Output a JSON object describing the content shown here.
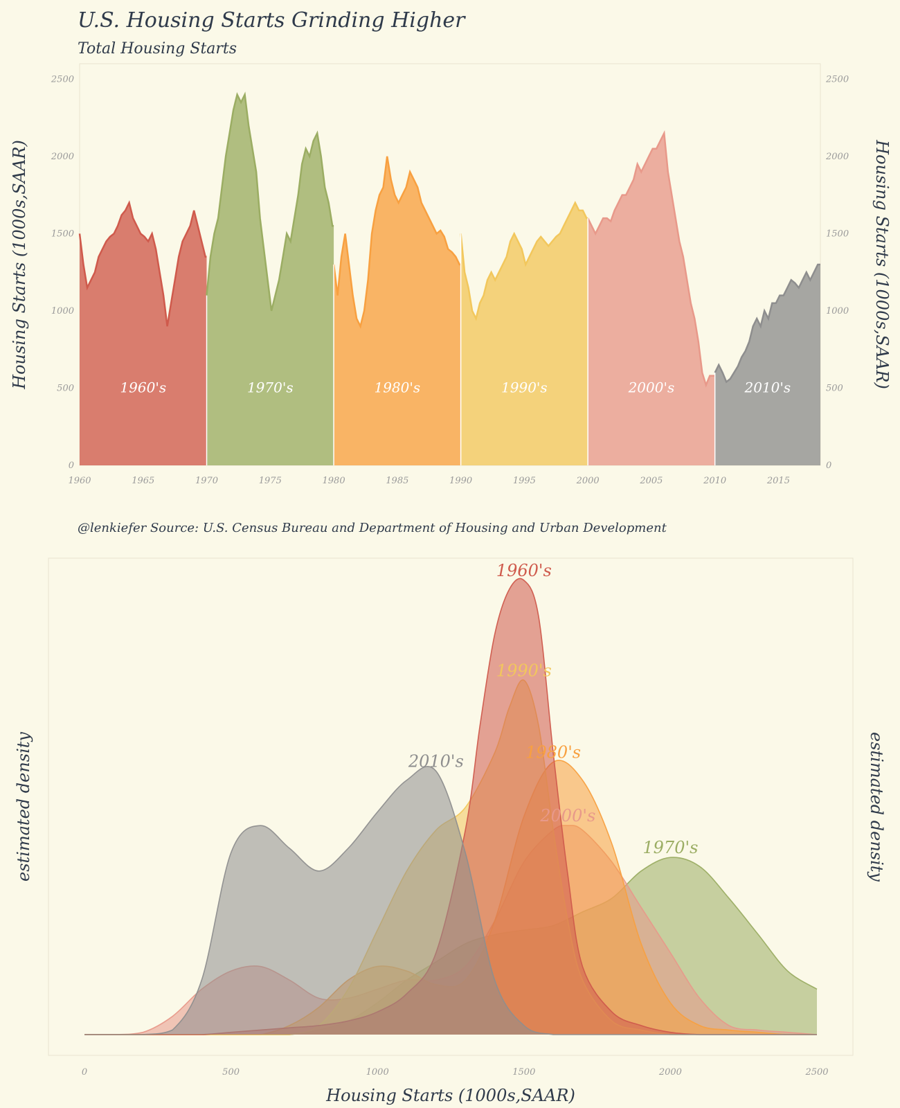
{
  "title": "U.S. Housing Starts Grinding Higher",
  "subtitle": "Total Housing Starts",
  "caption": "@lenkiefer  Source: U.S. Census Bureau and Department of Housing and Urban Development",
  "colors": {
    "1960's": "#cf5a4c",
    "1970's": "#9bad63",
    "1980's": "#f8a040",
    "1990's": "#f2c75c",
    "2000's": "#e8998a",
    "2010's": "#8e8e8e"
  },
  "chart_data": [
    {
      "type": "area",
      "title": "U.S. Housing Starts Grinding Higher",
      "subtitle": "Total Housing Starts",
      "ylabel": "Housing Starts (1000s,SAAR)",
      "ylabel_right": "Housing Starts (1000s,SAAR)",
      "xlim": [
        1960,
        2018.3
      ],
      "ylim": [
        0,
        2600
      ],
      "x_ticks": [
        "1960",
        "1965",
        "1970",
        "1975",
        "1980",
        "1985",
        "1990",
        "1995",
        "2000",
        "2005",
        "2010",
        "2015"
      ],
      "y_ticks": [
        "0",
        "500",
        "1000",
        "1500",
        "2000",
        "2500"
      ],
      "decade_labels": [
        "1960's",
        "1970's",
        "1980's",
        "1990's",
        "2000's",
        "2010's"
      ],
      "series": [
        {
          "name": "1960's",
          "x": [
            1960.0,
            1960.3,
            1960.6,
            1960.9,
            1961.2,
            1961.5,
            1961.8,
            1962.1,
            1962.4,
            1962.7,
            1963.0,
            1963.3,
            1963.6,
            1963.9,
            1964.2,
            1964.5,
            1964.8,
            1965.1,
            1965.4,
            1965.7,
            1966.0,
            1966.3,
            1966.6,
            1966.9,
            1967.2,
            1967.5,
            1967.8,
            1968.1,
            1968.4,
            1968.7,
            1969.0,
            1969.3,
            1969.6,
            1969.9
          ],
          "y": [
            1500,
            1300,
            1150,
            1200,
            1250,
            1350,
            1400,
            1450,
            1480,
            1500,
            1550,
            1620,
            1650,
            1700,
            1600,
            1550,
            1500,
            1480,
            1450,
            1500,
            1400,
            1250,
            1100,
            900,
            1050,
            1200,
            1350,
            1450,
            1500,
            1550,
            1650,
            1550,
            1450,
            1350
          ]
        },
        {
          "name": "1970's",
          "x": [
            1970.0,
            1970.3,
            1970.6,
            1970.9,
            1971.2,
            1971.5,
            1971.8,
            1972.1,
            1972.4,
            1972.7,
            1973.0,
            1973.3,
            1973.6,
            1973.9,
            1974.2,
            1974.5,
            1974.8,
            1975.1,
            1975.4,
            1975.7,
            1976.0,
            1976.3,
            1976.6,
            1976.9,
            1977.2,
            1977.5,
            1977.8,
            1978.1,
            1978.4,
            1978.7,
            1979.0,
            1979.3,
            1979.6,
            1979.9
          ],
          "y": [
            1100,
            1350,
            1500,
            1600,
            1800,
            2000,
            2150,
            2300,
            2400,
            2350,
            2400,
            2200,
            2050,
            1900,
            1600,
            1400,
            1200,
            1000,
            1100,
            1200,
            1350,
            1500,
            1450,
            1600,
            1750,
            1950,
            2050,
            2000,
            2100,
            2150,
            2000,
            1800,
            1700,
            1550
          ]
        },
        {
          "name": "1980's",
          "x": [
            1980.0,
            1980.3,
            1980.6,
            1980.9,
            1981.2,
            1981.5,
            1981.8,
            1982.1,
            1982.4,
            1982.7,
            1983.0,
            1983.3,
            1983.6,
            1983.9,
            1984.2,
            1984.5,
            1984.8,
            1985.1,
            1985.4,
            1985.7,
            1986.0,
            1986.3,
            1986.6,
            1986.9,
            1987.2,
            1987.5,
            1987.8,
            1988.1,
            1988.4,
            1988.7,
            1989.0,
            1989.3,
            1989.6,
            1989.9
          ],
          "y": [
            1300,
            1100,
            1350,
            1500,
            1300,
            1100,
            950,
            900,
            1000,
            1200,
            1500,
            1650,
            1750,
            1800,
            2000,
            1850,
            1750,
            1700,
            1750,
            1800,
            1900,
            1850,
            1800,
            1700,
            1650,
            1600,
            1550,
            1500,
            1520,
            1480,
            1400,
            1380,
            1350,
            1300
          ]
        },
        {
          "name": "1990's",
          "x": [
            1990.0,
            1990.3,
            1990.6,
            1990.9,
            1991.2,
            1991.5,
            1991.8,
            1992.1,
            1992.4,
            1992.7,
            1993.0,
            1993.3,
            1993.6,
            1993.9,
            1994.2,
            1994.5,
            1994.8,
            1995.1,
            1995.4,
            1995.7,
            1996.0,
            1996.3,
            1996.6,
            1996.9,
            1997.2,
            1997.5,
            1997.8,
            1998.1,
            1998.4,
            1998.7,
            1999.0,
            1999.3,
            1999.6,
            1999.9
          ],
          "y": [
            1500,
            1250,
            1150,
            1000,
            950,
            1050,
            1100,
            1200,
            1250,
            1200,
            1250,
            1300,
            1350,
            1450,
            1500,
            1450,
            1400,
            1300,
            1350,
            1400,
            1450,
            1480,
            1450,
            1420,
            1450,
            1480,
            1500,
            1550,
            1600,
            1650,
            1700,
            1650,
            1650,
            1600
          ]
        },
        {
          "name": "2000's",
          "x": [
            2000.0,
            2000.3,
            2000.6,
            2000.9,
            2001.2,
            2001.5,
            2001.8,
            2002.1,
            2002.4,
            2002.7,
            2003.0,
            2003.3,
            2003.6,
            2003.9,
            2004.2,
            2004.5,
            2004.8,
            2005.1,
            2005.4,
            2005.7,
            2006.0,
            2006.3,
            2006.6,
            2006.9,
            2007.2,
            2007.5,
            2007.8,
            2008.1,
            2008.4,
            2008.7,
            2009.0,
            2009.3,
            2009.6,
            2009.9
          ],
          "y": [
            1600,
            1550,
            1500,
            1550,
            1600,
            1600,
            1580,
            1650,
            1700,
            1750,
            1750,
            1800,
            1850,
            1950,
            1900,
            1950,
            2000,
            2050,
            2050,
            2100,
            2150,
            1900,
            1750,
            1600,
            1450,
            1350,
            1200,
            1050,
            950,
            800,
            600,
            520,
            580,
            580
          ]
        },
        {
          "name": "2010's",
          "x": [
            2010.0,
            2010.3,
            2010.6,
            2010.9,
            2011.2,
            2011.5,
            2011.8,
            2012.1,
            2012.4,
            2012.7,
            2013.0,
            2013.3,
            2013.6,
            2013.9,
            2014.2,
            2014.5,
            2014.8,
            2015.1,
            2015.4,
            2015.7,
            2016.0,
            2016.3,
            2016.6,
            2016.9,
            2017.2,
            2017.5,
            2017.8,
            2018.1
          ],
          "y": [
            600,
            650,
            600,
            540,
            560,
            600,
            640,
            700,
            740,
            800,
            900,
            950,
            900,
            1000,
            950,
            1050,
            1050,
            1100,
            1100,
            1150,
            1200,
            1180,
            1150,
            1200,
            1250,
            1200,
            1250,
            1300
          ]
        }
      ]
    },
    {
      "type": "area",
      "xlabel": "Housing Starts (1000s,SAAR)",
      "ylabel": "estimated density",
      "ylabel_right": "estimated density",
      "xlim": [
        0,
        2500
      ],
      "ylim": [
        0,
        1
      ],
      "x_ticks": [
        "0",
        "500",
        "1000",
        "1500",
        "2000",
        "2500"
      ],
      "series": [
        {
          "name": "1960's",
          "x": [
            0,
            100,
            200,
            300,
            400,
            500,
            600,
            700,
            800,
            900,
            1000,
            1100,
            1200,
            1300,
            1350,
            1400,
            1450,
            1500,
            1550,
            1600,
            1650,
            1700,
            1800,
            1900,
            2000,
            2100,
            2200,
            2300,
            2400,
            2500
          ],
          "y": [
            0,
            0,
            0,
            0,
            0,
            0.005,
            0.01,
            0.015,
            0.02,
            0.03,
            0.05,
            0.09,
            0.18,
            0.45,
            0.68,
            0.88,
            0.98,
            1.0,
            0.92,
            0.62,
            0.35,
            0.15,
            0.05,
            0.02,
            0.005,
            0,
            0,
            0,
            0,
            0
          ]
        },
        {
          "name": "1970's",
          "x": [
            0,
            100,
            200,
            300,
            400,
            500,
            600,
            700,
            800,
            900,
            1000,
            1100,
            1200,
            1300,
            1400,
            1500,
            1600,
            1700,
            1800,
            1900,
            2000,
            2100,
            2200,
            2300,
            2400,
            2500
          ],
          "y": [
            0,
            0,
            0,
            0,
            0,
            0,
            0,
            0,
            0.01,
            0.03,
            0.07,
            0.12,
            0.16,
            0.2,
            0.22,
            0.23,
            0.24,
            0.27,
            0.3,
            0.36,
            0.39,
            0.37,
            0.3,
            0.22,
            0.14,
            0.1
          ]
        },
        {
          "name": "1980's",
          "x": [
            0,
            100,
            200,
            300,
            400,
            500,
            600,
            700,
            800,
            900,
            1000,
            1100,
            1200,
            1300,
            1400,
            1500,
            1600,
            1700,
            1800,
            1900,
            2000,
            2100,
            2200,
            2300,
            2400,
            2500
          ],
          "y": [
            0,
            0,
            0,
            0,
            0,
            0,
            0,
            0.02,
            0.06,
            0.12,
            0.15,
            0.14,
            0.11,
            0.12,
            0.25,
            0.48,
            0.6,
            0.56,
            0.42,
            0.2,
            0.07,
            0.02,
            0.01,
            0.005,
            0,
            0
          ]
        },
        {
          "name": "1990's",
          "x": [
            0,
            100,
            200,
            300,
            400,
            500,
            600,
            700,
            800,
            900,
            1000,
            1100,
            1200,
            1300,
            1400,
            1450,
            1500,
            1550,
            1600,
            1650,
            1700,
            1800,
            1900,
            2000,
            2100,
            2200,
            2300,
            2400,
            2500
          ],
          "y": [
            0,
            0,
            0,
            0,
            0,
            0,
            0,
            0,
            0.02,
            0.1,
            0.23,
            0.36,
            0.45,
            0.5,
            0.62,
            0.72,
            0.78,
            0.68,
            0.45,
            0.25,
            0.12,
            0.03,
            0.01,
            0,
            0,
            0,
            0,
            0,
            0
          ]
        },
        {
          "name": "2000's",
          "x": [
            0,
            100,
            200,
            300,
            400,
            500,
            600,
            700,
            800,
            900,
            1000,
            1100,
            1200,
            1300,
            1400,
            1500,
            1600,
            1650,
            1700,
            1800,
            1900,
            2000,
            2100,
            2200,
            2300,
            2400,
            2500
          ],
          "y": [
            0,
            0,
            0.005,
            0.04,
            0.1,
            0.14,
            0.15,
            0.12,
            0.08,
            0.08,
            0.1,
            0.12,
            0.12,
            0.15,
            0.25,
            0.38,
            0.45,
            0.46,
            0.45,
            0.38,
            0.28,
            0.18,
            0.08,
            0.02,
            0.01,
            0.005,
            0
          ]
        },
        {
          "name": "2010's",
          "x": [
            0,
            100,
            200,
            300,
            400,
            500,
            600,
            700,
            800,
            900,
            1000,
            1100,
            1200,
            1300,
            1400,
            1500,
            1600,
            1700,
            1800,
            1900,
            2000,
            2100,
            2200,
            2300,
            2400,
            2500
          ],
          "y": [
            0,
            0,
            0,
            0.01,
            0.12,
            0.4,
            0.46,
            0.41,
            0.36,
            0.41,
            0.49,
            0.56,
            0.58,
            0.4,
            0.12,
            0.02,
            0,
            0,
            0,
            0,
            0,
            0,
            0,
            0,
            0,
            0
          ]
        }
      ]
    }
  ]
}
